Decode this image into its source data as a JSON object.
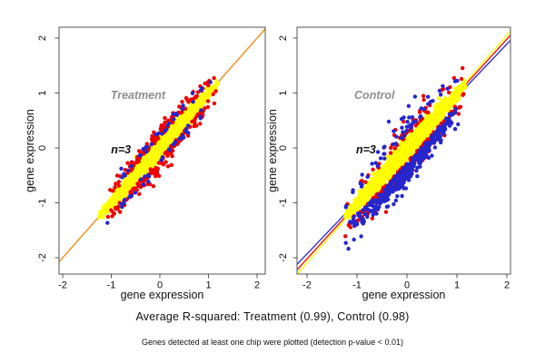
{
  "figure": {
    "background": "#ffffff",
    "subtitle": "Average R-squared: Treatment (0.99), Control (0.98)",
    "footnote": "Genes detected at least one chip were plotted (detection p-value < 0.01)"
  },
  "colors": {
    "yellow": "#ffff00",
    "red": "#ee0000",
    "blue": "#2626cc",
    "orange": "#ee9933",
    "title_gray": "#8f8f8f",
    "axis": "#555555",
    "text": "#111111"
  },
  "chart_data": [
    {
      "type": "scatter",
      "panel": "treatment",
      "title": "Treatment",
      "annotation": "n=3",
      "xlabel": "gene expression",
      "ylabel": "gene expression",
      "xlim": [
        -2.1,
        2.2
      ],
      "ylim": [
        -2.3,
        2.2
      ],
      "x_ticks": [
        -2,
        -1,
        0,
        1,
        2
      ],
      "y_ticks": [
        -2,
        -1,
        0,
        1,
        2
      ],
      "r_squared": 0.99,
      "grid": false,
      "title_pos": [
        -0.45,
        0.96
      ],
      "annotation_pos": [
        -0.8,
        -0.03
      ],
      "lines": [
        {
          "name": "identity-line",
          "color_key": "orange",
          "slope": 1.0,
          "intercept": 0.0,
          "width": 1.6
        }
      ],
      "series": [
        {
          "name": "chip-yellow",
          "color_key": "yellow",
          "kind": "band",
          "n": 1700,
          "seed": 101,
          "x_center": -0.05,
          "x_spread": 0.6,
          "x_range": [
            -1.26,
            1.19
          ],
          "halfwidth": 0.24,
          "slope": 1.0,
          "intercept": 0.0,
          "outlier_frac": 0.04,
          "outlier_scale": 2.0
        },
        {
          "name": "chip-red",
          "color_key": "red",
          "kind": "edge",
          "n": 250,
          "seed": 102,
          "x_center": -0.05,
          "x_spread": 0.62,
          "x_range": [
            -1.24,
            1.18
          ],
          "halfwidth": 0.24,
          "slope": 1.0,
          "intercept": 0.0,
          "edge_pos": 0.8,
          "jitter": 0.1,
          "below_frac": 0.55
        },
        {
          "name": "chip-blue",
          "color_key": "blue",
          "kind": "edge",
          "n": 65,
          "seed": 103,
          "x_center": -0.05,
          "x_spread": 0.6,
          "x_range": [
            -1.22,
            1.15
          ],
          "halfwidth": 0.24,
          "slope": 1.0,
          "intercept": 0.0,
          "edge_pos": 0.75,
          "jitter": 0.09,
          "below_frac": 0.5
        }
      ]
    },
    {
      "type": "scatter",
      "panel": "control",
      "title": "Control",
      "annotation": "n=3",
      "xlabel": "gene expression",
      "ylabel": "gene expression",
      "xlim": [
        -2.2,
        2.07
      ],
      "ylim": [
        -2.3,
        2.2
      ],
      "x_ticks": [
        -2,
        -1,
        0,
        1,
        2
      ],
      "y_ticks": [
        -2,
        -1,
        0,
        1,
        2
      ],
      "r_squared": 0.98,
      "grid": false,
      "title_pos": [
        -0.65,
        0.96
      ],
      "annotation_pos": [
        -0.82,
        -0.03
      ],
      "lines": [
        {
          "name": "fit-line-yellow",
          "color_key": "yellow",
          "slope": 1.035,
          "intercept": -0.02,
          "width": 1.3
        },
        {
          "name": "fit-line-red",
          "color_key": "red",
          "slope": 1.0,
          "intercept": -0.02,
          "width": 1.3
        },
        {
          "name": "fit-line-blue",
          "color_key": "blue",
          "slope": 0.955,
          "intercept": -0.02,
          "width": 1.3
        }
      ],
      "series": [
        {
          "name": "chip-yellow",
          "color_key": "yellow",
          "kind": "band",
          "n": 1700,
          "seed": 201,
          "x_center": -0.05,
          "x_spread": 0.62,
          "x_range": [
            -1.26,
            1.17
          ],
          "halfwidth": 0.28,
          "slope": 1.0,
          "intercept": -0.02,
          "outlier_frac": 0.05,
          "outlier_scale": 1.9
        },
        {
          "name": "chip-red",
          "color_key": "red",
          "kind": "edge",
          "n": 280,
          "seed": 202,
          "x_center": -0.05,
          "x_spread": 0.62,
          "x_range": [
            -1.24,
            1.17
          ],
          "halfwidth": 0.28,
          "slope": 1.0,
          "intercept": -0.02,
          "edge_pos": 0.85,
          "jitter": 0.11,
          "below_frac": 0.78
        },
        {
          "name": "chip-blue",
          "color_key": "blue",
          "kind": "edge",
          "n": 400,
          "seed": 203,
          "x_center": -0.02,
          "x_spread": 0.6,
          "x_range": [
            -1.23,
            1.15
          ],
          "halfwidth": 0.28,
          "slope": 1.0,
          "intercept": -0.02,
          "edge_pos": 1.0,
          "jitter": 0.15,
          "below_frac": 0.85
        }
      ]
    }
  ]
}
